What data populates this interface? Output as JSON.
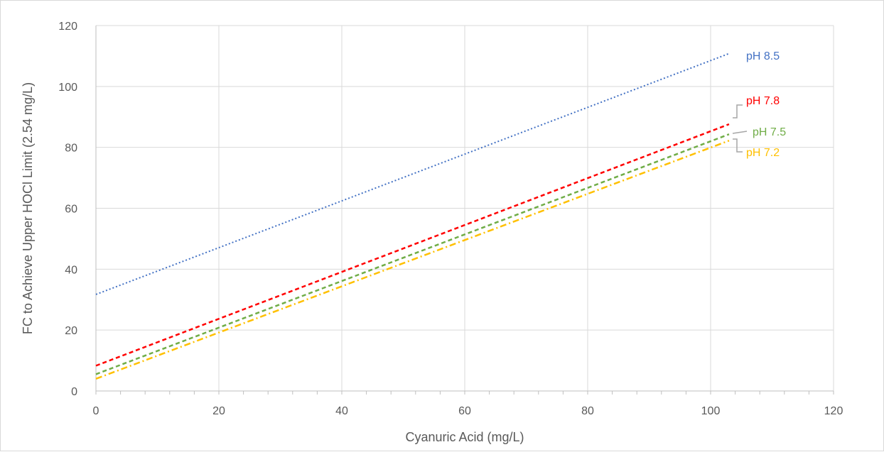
{
  "chart_data": {
    "type": "line",
    "title": "",
    "xlabel": "Cyanuric Acid (mg/L)",
    "ylabel": "FC to Achieve Upper HOCl Limit (2.54 mg/L)",
    "xlim": [
      0,
      120
    ],
    "ylim": [
      0,
      120
    ],
    "xticks": [
      0,
      20,
      40,
      60,
      80,
      100,
      120
    ],
    "yticks": [
      0,
      20,
      40,
      60,
      80,
      100,
      120
    ],
    "grid": true,
    "legend": "none",
    "series": [
      {
        "name": "pH 8.5",
        "color": "#4472c4",
        "dash": "dotted",
        "x": [
          0,
          103
        ],
        "y": [
          31.7,
          110.8
        ]
      },
      {
        "name": "pH 7.8",
        "color": "#ff0000",
        "dash": "dashed",
        "x": [
          0,
          103
        ],
        "y": [
          8.3,
          87.6
        ]
      },
      {
        "name": "pH 7.5",
        "color": "#70ad47",
        "dash": "dashed",
        "x": [
          0,
          103
        ],
        "y": [
          5.5,
          84.3
        ]
      },
      {
        "name": "pH 7.2",
        "color": "#ffc000",
        "dash": "dash-dot",
        "x": [
          0,
          103
        ],
        "y": [
          4.0,
          82.2
        ]
      }
    ]
  }
}
